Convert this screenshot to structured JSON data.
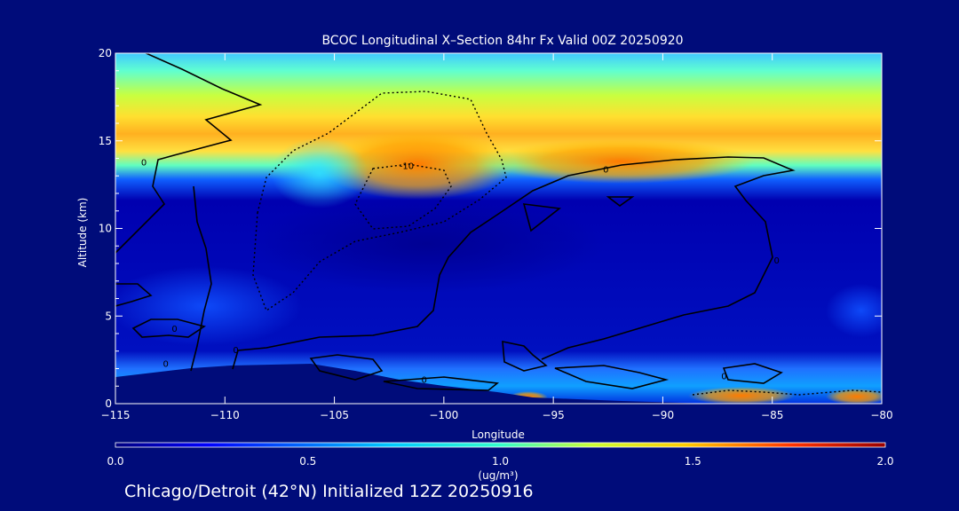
{
  "chart_data": {
    "type": "heatmap",
    "title": "BCOC Longitudinal X–Section 84hr  Fx Valid 00Z 20250920",
    "xlabel": "Longitude",
    "ylabel": "Altitude (km)",
    "xlim": [
      -115,
      -80
    ],
    "ylim": [
      0,
      20
    ],
    "x_ticks": [
      -115,
      -110,
      -105,
      -100,
      -95,
      -90,
      -85,
      -80
    ],
    "y_ticks": [
      0,
      5,
      10,
      15,
      20
    ],
    "colorbar": {
      "min": 0.0,
      "max": 2.0,
      "ticks": [
        "0.0",
        "0.5",
        "1.0",
        "1.5",
        "2.0"
      ],
      "unit_label": "(ug/m³)",
      "colormap": "jet"
    },
    "contour_labels": [
      {
        "text": "0",
        "lon": -113.7,
        "alt": 13.8
      },
      {
        "text": "0",
        "lon": -92.6,
        "alt": 13.4
      },
      {
        "text": "0",
        "lon": -84.8,
        "alt": 8.2
      },
      {
        "text": "0",
        "lon": -112.3,
        "alt": 4.3
      },
      {
        "text": "0",
        "lon": -112.7,
        "alt": 2.3
      },
      {
        "text": "0",
        "lon": -109.5,
        "alt": 3.1
      },
      {
        "text": "0",
        "lon": -100.9,
        "alt": 1.4
      },
      {
        "text": "0",
        "lon": -87.2,
        "alt": 1.6
      },
      {
        "text": "-10",
        "lon": -101.7,
        "alt": 13.6
      }
    ]
  },
  "footer": {
    "caption": "Chicago/Detroit (42°N) Initialized 12Z 20250916"
  }
}
